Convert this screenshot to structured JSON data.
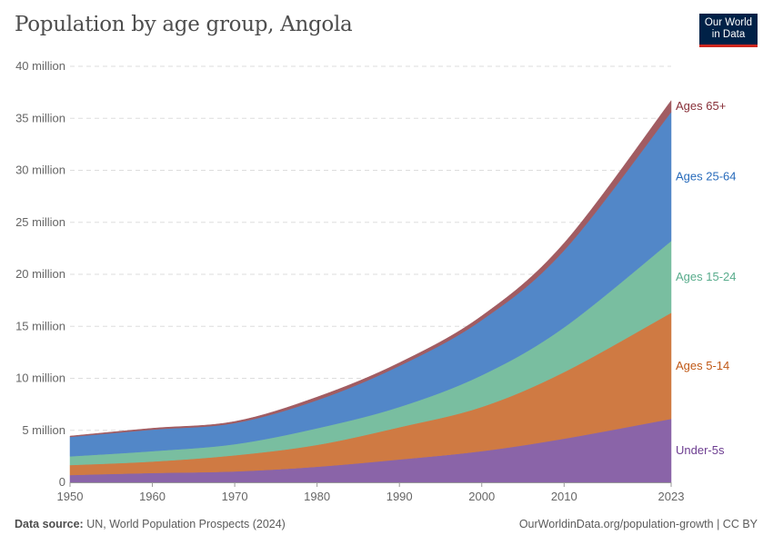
{
  "header": {
    "title": "Population by age group, Angola",
    "logo": "Our World in Data"
  },
  "footer": {
    "source_label": "Data source:",
    "source": "UN, World Population Prospects (2024)",
    "link": "OurWorldinData.org/population-growth | CC BY"
  },
  "chart_data": {
    "type": "area",
    "stacked": true,
    "title": "Population by age group, Angola",
    "xlabel": "",
    "ylabel": "",
    "x": [
      1950,
      1960,
      1970,
      1980,
      1990,
      2000,
      2010,
      2023
    ],
    "xticks": [
      "1950",
      "1960",
      "1970",
      "1980",
      "1990",
      "2000",
      "2010",
      "2023"
    ],
    "xlim": [
      1950,
      2023
    ],
    "ylim": [
      0,
      40000000
    ],
    "yticks": [
      {
        "v": 0,
        "label": "0"
      },
      {
        "v": 5000000,
        "label": "5 million"
      },
      {
        "v": 10000000,
        "label": "10 million"
      },
      {
        "v": 15000000,
        "label": "15 million"
      },
      {
        "v": 20000000,
        "label": "20 million"
      },
      {
        "v": 25000000,
        "label": "25 million"
      },
      {
        "v": 30000000,
        "label": "30 million"
      },
      {
        "v": 35000000,
        "label": "35 million"
      },
      {
        "v": 40000000,
        "label": "40 million"
      }
    ],
    "grid": true,
    "legend": "right-inline",
    "series": [
      {
        "name": "Under-5s",
        "color": "#8a64a8",
        "label_color": "#6d3e91",
        "values": [
          700000,
          900000,
          1050000,
          1500000,
          2200000,
          3000000,
          4200000,
          6100000
        ]
      },
      {
        "name": "Ages 5-14",
        "color": "#cf7a43",
        "label_color": "#c05917",
        "values": [
          960000,
          1100000,
          1550000,
          2100000,
          3100000,
          4250000,
          6400000,
          10200000
        ]
      },
      {
        "name": "Ages 15-24",
        "color": "#79bea0",
        "label_color": "#58ac8c",
        "values": [
          840000,
          1000000,
          1070000,
          1600000,
          1950000,
          3050000,
          4300000,
          6900000
        ]
      },
      {
        "name": "Ages 25-64",
        "color": "#5287c8",
        "label_color": "#286bbb",
        "values": [
          1870000,
          2070000,
          2030000,
          2700000,
          3950000,
          5300000,
          7400000,
          12400000
        ]
      },
      {
        "name": "Ages 65+",
        "color": "#a15c62",
        "label_color": "#883039",
        "values": [
          80000,
          130000,
          150000,
          300000,
          300000,
          400000,
          700000,
          1100000
        ]
      }
    ]
  }
}
